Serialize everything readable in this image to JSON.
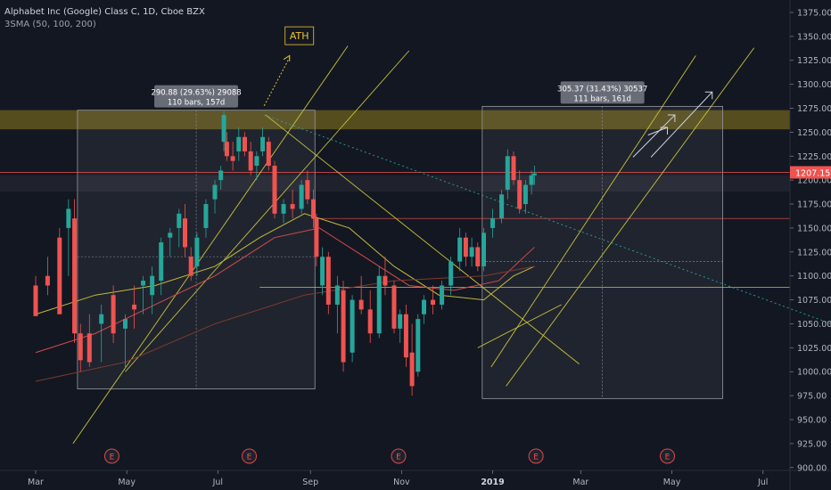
{
  "header": {
    "symbol_line": "Alphabet Inc (Google) Class C, 1D, Cboe BZX",
    "indicator_line": "3SMA (50, 100, 200)"
  },
  "chart_data": {
    "type": "candlestick",
    "price_axis": {
      "range": [
        897,
        1388
      ],
      "ticks": [
        1375,
        1350,
        1325,
        1300,
        1275,
        1250,
        1225,
        1200,
        1175,
        1150,
        1125,
        1100,
        1075,
        1050,
        1025,
        1000,
        975,
        950,
        925,
        900
      ],
      "tick_labels": [
        "1375.00",
        "1350.00",
        "1325.00",
        "1300.00",
        "1275.00",
        "1250.00",
        "1225.00",
        "1200.00",
        "1175.00",
        "1150.00",
        "1125.00",
        "1100.00",
        "1075.00",
        "1050.00",
        "1025.00",
        "1000.00",
        "975.00",
        "950.00",
        "925.00",
        "900.00"
      ],
      "last_price": 1207.15,
      "last_price_label": "1207.15"
    },
    "time_axis": {
      "labels": [
        "Mar",
        "May",
        "Jul",
        "Sep",
        "Nov",
        "2019",
        "Mar",
        "May",
        "Jul"
      ],
      "day_index": [
        0,
        61,
        122,
        184,
        245,
        306,
        365,
        426,
        487
      ]
    },
    "earnings_markers": {
      "label": "E",
      "day_index": [
        51,
        143,
        243,
        335,
        423
      ]
    },
    "candles": [
      [
        0,
        1090,
        1100,
        1060,
        1058
      ],
      [
        8,
        1100,
        1120,
        1080,
        1090
      ],
      [
        16,
        1140,
        1150,
        1060,
        1060
      ],
      [
        22,
        1150,
        1180,
        1100,
        1170
      ],
      [
        26,
        1160,
        1180,
        1030,
        1040
      ],
      [
        30,
        1040,
        1050,
        1000,
        1012
      ],
      [
        36,
        1040,
        1060,
        1005,
        1010
      ],
      [
        44,
        1050,
        1070,
        1010,
        1060
      ],
      [
        52,
        1080,
        1090,
        1030,
        1040
      ],
      [
        60,
        1045,
        1060,
        1003,
        1055
      ],
      [
        66,
        1070,
        1090,
        1045,
        1065
      ],
      [
        72,
        1090,
        1100,
        1060,
        1095
      ],
      [
        78,
        1080,
        1110,
        1060,
        1100
      ],
      [
        84,
        1095,
        1140,
        1080,
        1135
      ],
      [
        90,
        1140,
        1150,
        1120,
        1145
      ],
      [
        96,
        1150,
        1170,
        1130,
        1165
      ],
      [
        100,
        1160,
        1175,
        1120,
        1130
      ],
      [
        104,
        1120,
        1130,
        1095,
        1100
      ],
      [
        108,
        1110,
        1145,
        1100,
        1140
      ],
      [
        114,
        1150,
        1180,
        1140,
        1175
      ],
      [
        120,
        1180,
        1200,
        1165,
        1195
      ],
      [
        124,
        1200,
        1215,
        1190,
        1210
      ],
      [
        126,
        1240,
        1272,
        1230,
        1268
      ],
      [
        128,
        1240,
        1250,
        1220,
        1225
      ],
      [
        132,
        1225,
        1240,
        1210,
        1220
      ],
      [
        136,
        1230,
        1255,
        1220,
        1245
      ],
      [
        140,
        1245,
        1250,
        1225,
        1230
      ],
      [
        144,
        1230,
        1240,
        1205,
        1210
      ],
      [
        148,
        1215,
        1230,
        1200,
        1225
      ],
      [
        152,
        1230,
        1255,
        1225,
        1245
      ],
      [
        156,
        1240,
        1245,
        1210,
        1215
      ],
      [
        160,
        1215,
        1220,
        1160,
        1165
      ],
      [
        166,
        1165,
        1180,
        1155,
        1175
      ],
      [
        172,
        1175,
        1190,
        1160,
        1170
      ],
      [
        178,
        1170,
        1200,
        1165,
        1195
      ],
      [
        182,
        1200,
        1210,
        1175,
        1180
      ],
      [
        186,
        1180,
        1190,
        1150,
        1160
      ],
      [
        188,
        1160,
        1165,
        1110,
        1120
      ],
      [
        192,
        1090,
        1130,
        1080,
        1120
      ],
      [
        196,
        1120,
        1125,
        1060,
        1070
      ],
      [
        202,
        1070,
        1100,
        1040,
        1090
      ],
      [
        206,
        1085,
        1095,
        1000,
        1010
      ],
      [
        212,
        1020,
        1080,
        1010,
        1075
      ],
      [
        218,
        1075,
        1100,
        1060,
        1065
      ],
      [
        224,
        1065,
        1085,
        1030,
        1040
      ],
      [
        230,
        1040,
        1110,
        1035,
        1100
      ],
      [
        234,
        1100,
        1120,
        1080,
        1090
      ],
      [
        240,
        1090,
        1095,
        1040,
        1045
      ],
      [
        244,
        1045,
        1065,
        1030,
        1060
      ],
      [
        248,
        1060,
        1070,
        1005,
        1015
      ],
      [
        252,
        1020,
        1050,
        975,
        985
      ],
      [
        256,
        1000,
        1060,
        995,
        1055
      ],
      [
        260,
        1060,
        1080,
        1050,
        1075
      ],
      [
        266,
        1075,
        1090,
        1060,
        1070
      ],
      [
        272,
        1070,
        1095,
        1065,
        1090
      ],
      [
        278,
        1090,
        1120,
        1080,
        1115
      ],
      [
        284,
        1115,
        1150,
        1105,
        1140
      ],
      [
        288,
        1140,
        1145,
        1110,
        1120
      ],
      [
        292,
        1120,
        1140,
        1110,
        1130
      ],
      [
        296,
        1130,
        1135,
        1105,
        1110
      ],
      [
        300,
        1110,
        1150,
        1105,
        1145
      ],
      [
        306,
        1150,
        1170,
        1140,
        1160
      ],
      [
        312,
        1160,
        1190,
        1155,
        1185
      ],
      [
        316,
        1190,
        1232,
        1180,
        1225
      ],
      [
        320,
        1225,
        1230,
        1195,
        1200
      ],
      [
        324,
        1200,
        1210,
        1165,
        1170
      ],
      [
        328,
        1175,
        1200,
        1165,
        1195
      ],
      [
        332,
        1195,
        1210,
        1185,
        1205
      ],
      [
        334,
        1205,
        1215,
        1195,
        1207
      ]
    ],
    "sma": [
      {
        "name": "50",
        "color": "#c2b93a",
        "points": [
          [
            0,
            1060
          ],
          [
            40,
            1080
          ],
          [
            80,
            1090
          ],
          [
            120,
            1110
          ],
          [
            150,
            1140
          ],
          [
            180,
            1165
          ],
          [
            210,
            1150
          ],
          [
            240,
            1110
          ],
          [
            270,
            1080
          ],
          [
            300,
            1075
          ],
          [
            320,
            1100
          ],
          [
            334,
            1110
          ]
        ]
      },
      {
        "name": "100",
        "color": "#d24b4b",
        "points": [
          [
            0,
            1020
          ],
          [
            40,
            1040
          ],
          [
            80,
            1070
          ],
          [
            120,
            1100
          ],
          [
            160,
            1140
          ],
          [
            190,
            1150
          ],
          [
            220,
            1120
          ],
          [
            250,
            1090
          ],
          [
            280,
            1085
          ],
          [
            310,
            1095
          ],
          [
            334,
            1130
          ]
        ]
      },
      {
        "name": "200",
        "color": "#7e3a2e",
        "points": [
          [
            0,
            990
          ],
          [
            60,
            1010
          ],
          [
            120,
            1050
          ],
          [
            180,
            1080
          ],
          [
            240,
            1095
          ],
          [
            300,
            1100
          ],
          [
            334,
            1110
          ]
        ]
      }
    ],
    "annotations": {
      "ath_label": "ATH",
      "range1_line1": "290.88 (29.63%) 29088",
      "range1_line2": "110 bars, 157d",
      "range2_line1": "305.37 (31.43%) 30537",
      "range2_line2": "111 bars, 161d",
      "earnings_label": "E"
    },
    "colors": {
      "background": "#131722",
      "up": "#26a69a",
      "down": "#ef5350",
      "channel": "#c8c23a",
      "zone": "#8d7a19",
      "last_price": "#ef5350"
    },
    "grid": false
  }
}
